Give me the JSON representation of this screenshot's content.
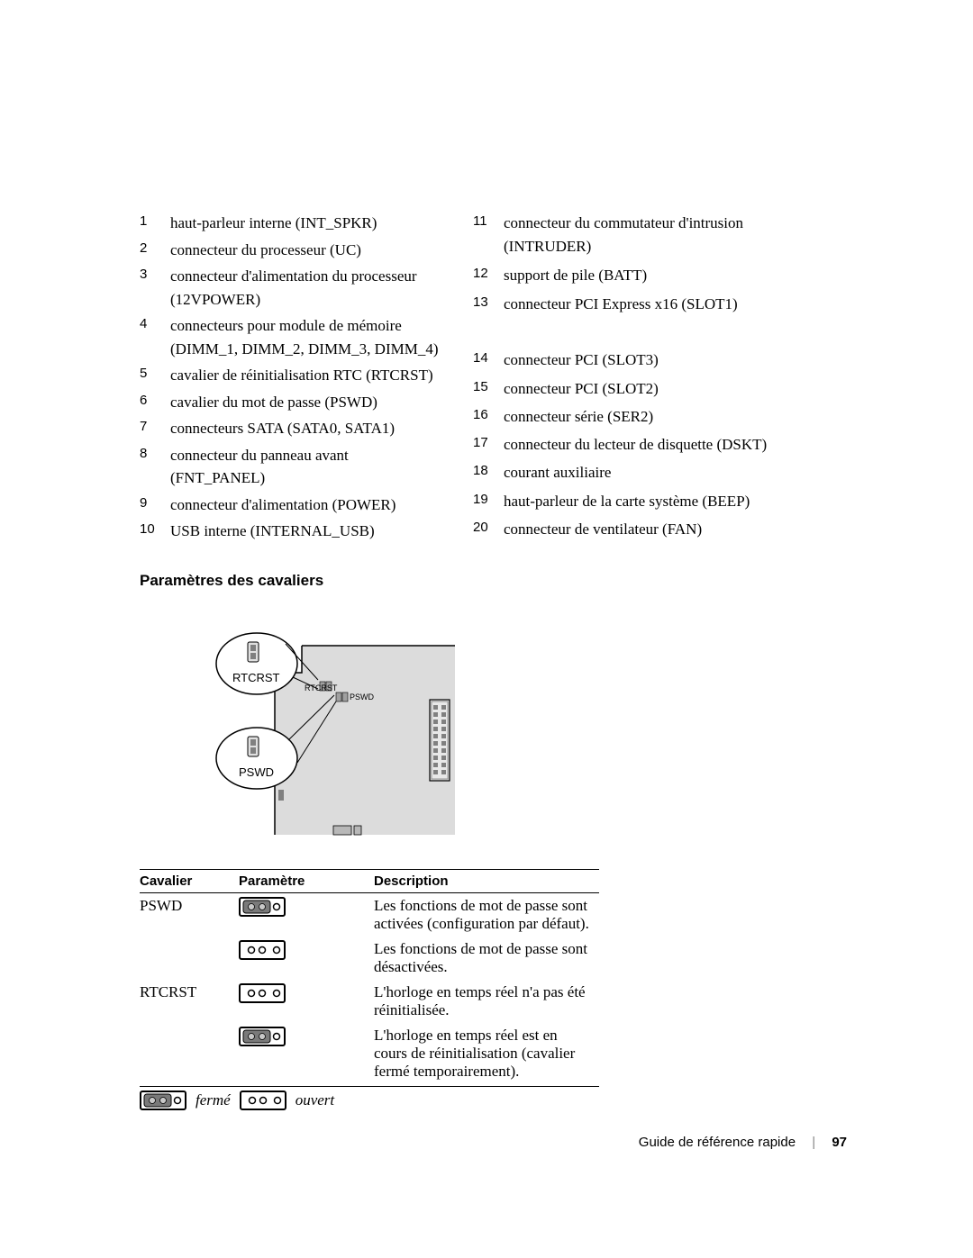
{
  "connectors_left": [
    {
      "n": "1",
      "t": "haut-parleur interne (INT_SPKR)"
    },
    {
      "n": "2",
      "t": "connecteur du processeur (UC)"
    },
    {
      "n": "3",
      "t": "connecteur d'alimentation du processeur (12VPOWER)"
    },
    {
      "n": "4",
      "t": "connecteurs pour module de mémoire (DIMM_1, DIMM_2, DIMM_3, DIMM_4)"
    },
    {
      "n": "5",
      "t": "cavalier de réinitialisation RTC (RTCRST)"
    },
    {
      "n": "6",
      "t": "cavalier du mot de passe (PSWD)"
    },
    {
      "n": "7",
      "t": "connecteurs SATA (SATA0, SATA1)"
    },
    {
      "n": "8",
      "t": "connecteur du panneau avant (FNT_PANEL)"
    },
    {
      "n": "9",
      "t": "connecteur d'alimentation (POWER)"
    },
    {
      "n": "10",
      "t": "USB interne (INTERNAL_USB)"
    }
  ],
  "connectors_right": [
    {
      "n": "11",
      "t": "connecteur du commutateur d'intrusion (INTRUDER)"
    },
    {
      "n": "12",
      "t": "support de pile (BATT)"
    },
    {
      "n": "13",
      "t": "connecteur PCI Express x16 (SLOT1)"
    },
    {
      "n": "14",
      "t": "connecteur PCI (SLOT3)"
    },
    {
      "n": "15",
      "t": "connecteur PCI (SLOT2)"
    },
    {
      "n": "16",
      "t": "connecteur série (SER2)"
    },
    {
      "n": "17",
      "t": "connecteur du lecteur de disquette (DSKT)"
    },
    {
      "n": "18",
      "t": "courant auxiliaire"
    },
    {
      "n": "19",
      "t": "haut-parleur de la carte système (BEEP)"
    },
    {
      "n": "20",
      "t": "connecteur de ventilateur (FAN)"
    }
  ],
  "right_blank_after": {
    "13": true
  },
  "section_heading": "Paramètres des cavaliers",
  "diagram": {
    "label_rtcrst": "RTCRST",
    "label_pswd": "PSWD",
    "small_rtcrst": "RTCRST",
    "small_pswd": "PSWD",
    "colors": {
      "board": "#dcdcdc",
      "outline": "#000000",
      "pin_block": "#b0b0b0",
      "bg": "#ffffff"
    }
  },
  "table": {
    "headers": [
      "Cavalier",
      "Paramètre",
      "Description"
    ],
    "rows": [
      {
        "cav": "PSWD",
        "state": "closed",
        "desc": "Les fonctions de mot de passe sont activées (configuration par défaut)."
      },
      {
        "cav": "",
        "state": "open",
        "desc": "Les fonctions de mot de passe sont désactivées."
      },
      {
        "cav": "RTCRST",
        "state": "open",
        "desc": "L'horloge en temps réel n'a pas été réinitialisée."
      },
      {
        "cav": "",
        "state": "closed",
        "desc": "L'horloge en temps réel est en cours de réinitialisation (cavalier fermé temporairement)."
      }
    ]
  },
  "legend": {
    "closed": "fermé",
    "open": "ouvert"
  },
  "footer": {
    "title": "Guide de référence rapide",
    "page": "97"
  }
}
